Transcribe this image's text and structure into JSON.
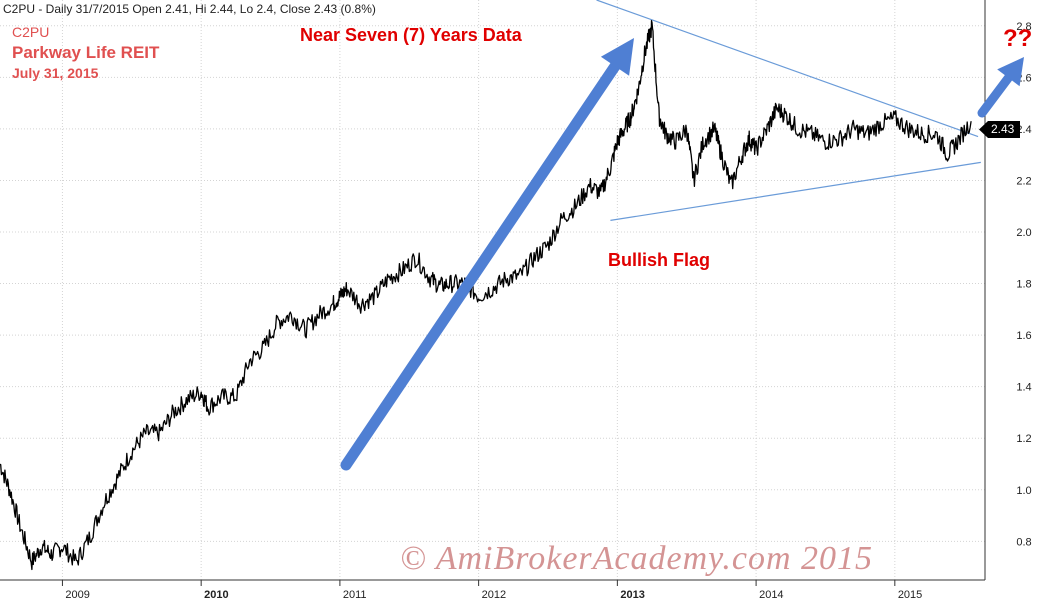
{
  "header": "C2PU - Daily 31/7/2015 Open 2.41, Hi 2.44, Lo 2.4, Close 2.43 (0.8%)",
  "symbol": "C2PU",
  "company": "Parkway Life REIT",
  "date": "July 31, 2015",
  "annotations": {
    "seven_years": "Near Seven (7) Years Data",
    "bullish_flag": "Bullish Flag",
    "question": "??"
  },
  "watermark": "© AmiBrokerAcademy.com 2015",
  "last_price_label": "2.43",
  "colors": {
    "price": "#000000",
    "arrow": "#4f7fd3",
    "trendline": "#6a9bd8",
    "annotation": "#e00000",
    "title": "#e05050",
    "grid": "#d4d4d4"
  },
  "chart_data": {
    "type": "line",
    "y_axis": {
      "min": 0.65,
      "max": 2.9,
      "side": "right",
      "ticks": [
        0.8,
        1.0,
        1.2,
        1.4,
        1.6,
        1.8,
        2.0,
        2.2,
        2.4,
        2.6,
        2.8
      ],
      "tick_labels": [
        "0.8",
        "1.0",
        "1.2",
        "1.4",
        "1.6",
        "1.8",
        "2.0",
        "2.2",
        "2.4",
        "2.6",
        "2.8"
      ]
    },
    "x_axis": {
      "min": 2008.55,
      "max": 2015.65,
      "ticks": [
        2009,
        2010,
        2011,
        2012,
        2013,
        2014,
        2015
      ],
      "tick_labels": [
        "2009",
        "2010",
        "2011",
        "2012",
        "2013",
        "2014",
        "2015"
      ],
      "bold_ticks": [
        2010,
        2013
      ]
    },
    "grid": true,
    "series": [
      {
        "x": [
          2008.55,
          2008.62,
          2008.7,
          2008.78,
          2008.85,
          2008.92,
          2009.0,
          2009.1,
          2009.2,
          2009.3,
          2009.4,
          2009.5,
          2009.6,
          2009.7,
          2009.8,
          2009.9,
          2010.0,
          2010.05,
          2010.15,
          2010.25,
          2010.35,
          2010.45,
          2010.55,
          2010.65,
          2010.75,
          2010.85,
          2010.95,
          2011.0,
          2011.05,
          2011.15,
          2011.25,
          2011.35,
          2011.45,
          2011.55,
          2011.65,
          2011.72,
          2011.8,
          2011.9,
          2012.0,
          2012.1,
          2012.2,
          2012.3,
          2012.4,
          2012.5,
          2012.6,
          2012.7,
          2012.8,
          2012.88,
          2012.95,
          2013.0,
          2013.05,
          2013.1,
          2013.15,
          2013.2,
          2013.25,
          2013.3,
          2013.35,
          2013.42,
          2013.5,
          2013.55,
          2013.62,
          2013.7,
          2013.75,
          2013.82,
          2013.9,
          2013.95,
          2014.0,
          2014.08,
          2014.15,
          2014.22,
          2014.3,
          2014.4,
          2014.5,
          2014.6,
          2014.7,
          2014.8,
          2014.9,
          2015.0,
          2015.1,
          2015.2,
          2015.3,
          2015.38,
          2015.45,
          2015.55
        ],
        "y": [
          1.1,
          1.0,
          0.85,
          0.72,
          0.78,
          0.75,
          0.78,
          0.72,
          0.82,
          0.95,
          1.05,
          1.15,
          1.22,
          1.22,
          1.3,
          1.35,
          1.38,
          1.32,
          1.36,
          1.36,
          1.5,
          1.55,
          1.65,
          1.68,
          1.62,
          1.68,
          1.72,
          1.75,
          1.78,
          1.72,
          1.75,
          1.82,
          1.85,
          1.9,
          1.82,
          1.79,
          1.8,
          1.8,
          1.75,
          1.78,
          1.82,
          1.83,
          1.9,
          1.95,
          2.05,
          2.1,
          2.18,
          2.15,
          2.25,
          2.35,
          2.4,
          2.45,
          2.55,
          2.7,
          2.8,
          2.45,
          2.38,
          2.35,
          2.4,
          2.2,
          2.35,
          2.4,
          2.3,
          2.18,
          2.3,
          2.36,
          2.32,
          2.4,
          2.48,
          2.45,
          2.4,
          2.38,
          2.35,
          2.36,
          2.4,
          2.38,
          2.42,
          2.44,
          2.4,
          2.38,
          2.38,
          2.3,
          2.35,
          2.43
        ]
      }
    ]
  }
}
